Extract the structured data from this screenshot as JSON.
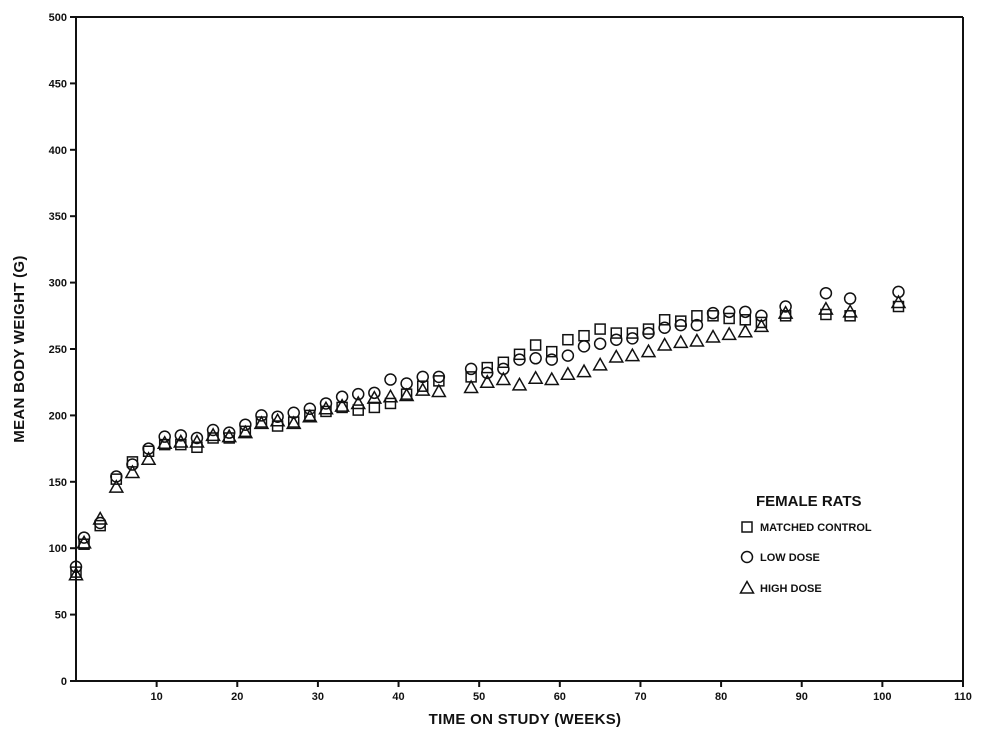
{
  "chart_data": {
    "type": "scatter",
    "title": "",
    "xlabel": "TIME ON STUDY (WEEKS)",
    "ylabel": "MEAN BODY WEIGHT (G)",
    "xlim": [
      0,
      110
    ],
    "ylim": [
      0,
      500
    ],
    "xticks": [
      10,
      20,
      30,
      40,
      50,
      60,
      70,
      80,
      90,
      100,
      110
    ],
    "yticks": [
      0,
      50,
      100,
      150,
      200,
      250,
      300,
      350,
      400,
      450,
      500
    ],
    "grid": false,
    "legend": {
      "title": "FEMALE RATS",
      "placement": "right"
    },
    "series": [
      {
        "name": "MATCHED CONTROL",
        "marker": "square",
        "x": [
          0,
          1,
          3,
          5,
          7,
          9,
          11,
          13,
          15,
          17,
          19,
          21,
          23,
          25,
          27,
          29,
          31,
          33,
          35,
          37,
          39,
          41,
          43,
          45,
          49,
          51,
          53,
          55,
          57,
          59,
          61,
          63,
          65,
          67,
          69,
          71,
          73,
          75,
          77,
          79,
          81,
          83,
          85,
          88,
          93,
          96,
          102
        ],
        "y": [
          82,
          103,
          117,
          152,
          165,
          173,
          178,
          178,
          176,
          183,
          183,
          188,
          195,
          192,
          195,
          200,
          203,
          206,
          204,
          206,
          209,
          216,
          222,
          226,
          229,
          236,
          240,
          246,
          253,
          248,
          257,
          260,
          265,
          262,
          262,
          265,
          272,
          271,
          275,
          275,
          273,
          272,
          270,
          275,
          276,
          275,
          282
        ]
      },
      {
        "name": "LOW DOSE",
        "marker": "circle",
        "x": [
          0,
          1,
          3,
          5,
          7,
          9,
          11,
          13,
          15,
          17,
          19,
          21,
          23,
          25,
          27,
          29,
          31,
          33,
          35,
          37,
          39,
          41,
          43,
          45,
          49,
          51,
          53,
          55,
          57,
          59,
          61,
          63,
          65,
          67,
          69,
          71,
          73,
          75,
          77,
          79,
          81,
          83,
          85,
          88,
          93,
          96,
          102
        ],
        "y": [
          86,
          108,
          119,
          154,
          163,
          175,
          184,
          185,
          183,
          189,
          187,
          193,
          200,
          199,
          202,
          205,
          209,
          214,
          216,
          217,
          227,
          224,
          229,
          229,
          235,
          232,
          235,
          242,
          243,
          242,
          245,
          252,
          254,
          257,
          258,
          262,
          266,
          268,
          268,
          277,
          278,
          278,
          275,
          282,
          292,
          288,
          293
        ]
      },
      {
        "name": "HIGH DOSE",
        "marker": "triangle",
        "x": [
          0,
          1,
          3,
          5,
          7,
          9,
          11,
          13,
          15,
          17,
          19,
          21,
          23,
          25,
          27,
          29,
          31,
          33,
          35,
          37,
          39,
          41,
          43,
          45,
          49,
          51,
          53,
          55,
          57,
          59,
          61,
          63,
          65,
          67,
          69,
          71,
          73,
          75,
          77,
          79,
          81,
          83,
          85,
          88,
          93,
          96,
          102
        ],
        "y": [
          80,
          104,
          122,
          146,
          157,
          167,
          179,
          180,
          180,
          185,
          184,
          187,
          194,
          196,
          194,
          199,
          205,
          207,
          209,
          213,
          214,
          215,
          219,
          218,
          221,
          225,
          227,
          223,
          228,
          227,
          231,
          233,
          238,
          244,
          245,
          248,
          253,
          255,
          256,
          259,
          261,
          263,
          267,
          277,
          280,
          278,
          285
        ]
      }
    ]
  }
}
